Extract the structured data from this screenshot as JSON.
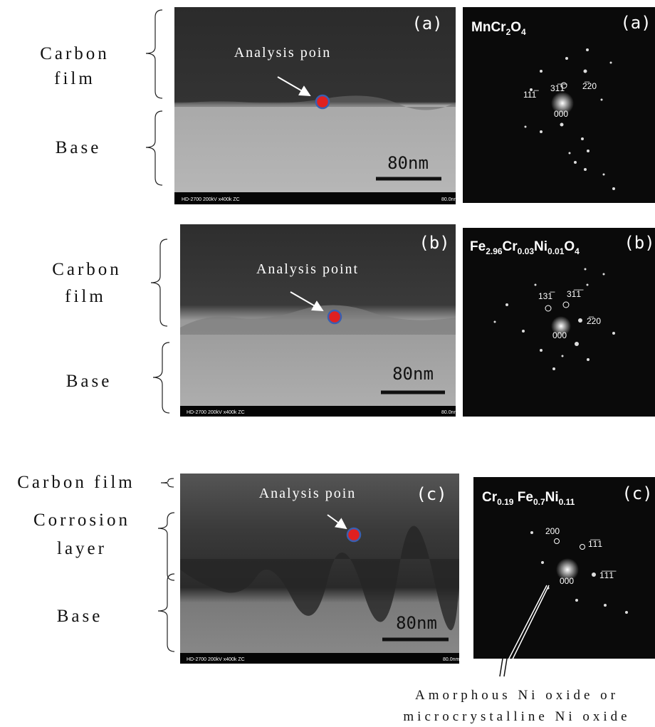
{
  "panels": [
    {
      "left_labels": [
        [
          "Carbon",
          "film"
        ],
        [
          "Base"
        ]
      ],
      "sem": {
        "label": "(a)",
        "annotation": "Analysis poin",
        "scale_bar": "80nm",
        "footer_left": "HD-2700 200kV x400k ZC",
        "footer_right": "80.0nm"
      },
      "diffraction": {
        "label": "(a)",
        "formula": [
          {
            "text": "Mn"
          },
          {
            "text": "Cr"
          },
          {
            "text": "2",
            "sub": true
          },
          {
            "text": "O"
          },
          {
            "text": "4",
            "sub": true
          }
        ],
        "spots": [
          "31̅1̅",
          "2̅20",
          "111̅",
          "000"
        ]
      }
    },
    {
      "left_labels": [
        [
          "Carbon",
          "film"
        ],
        [
          "Base"
        ]
      ],
      "sem": {
        "label": "(b)",
        "annotation": "Analysis point",
        "scale_bar": "80nm",
        "footer_left": "HD-2700 200kV x400k ZC",
        "footer_right": "80.0nm"
      },
      "diffraction": {
        "label": "(b)",
        "formula": [
          {
            "text": "Fe"
          },
          {
            "text": "2.96",
            "sub": true
          },
          {
            "text": "Cr"
          },
          {
            "text": "0.03",
            "sub": true
          },
          {
            "text": "Ni"
          },
          {
            "text": "0.01",
            "sub": true
          },
          {
            "text": "O"
          },
          {
            "text": "4",
            "sub": true
          }
        ],
        "spots": [
          "131̅",
          "31̅1̅",
          "2̅20",
          "000"
        ]
      }
    },
    {
      "left_labels": [
        [
          "Carbon film"
        ],
        [
          "Corrosion",
          "layer"
        ],
        [
          "Base"
        ]
      ],
      "sem": {
        "label": "(c)",
        "annotation": "Analysis poin",
        "scale_bar": "80nm",
        "footer_left": "HD-2700 200kV x400k ZC",
        "footer_right": "80.0nm"
      },
      "diffraction": {
        "label": "(c)",
        "formula": [
          {
            "text": "Cr"
          },
          {
            "text": "0.19",
            "sub": true
          },
          {
            "text": " Fe"
          },
          {
            "text": "0.7",
            "sub": true
          },
          {
            "text": "Ni"
          },
          {
            "text": "0.11",
            "sub": true
          }
        ],
        "spots": [
          "200",
          "1̅1̅1",
          "1̅1̅1̅",
          "000"
        ]
      }
    }
  ],
  "note": [
    "Amorphous Ni oxide or",
    "microcrystalline Ni oxide"
  ]
}
